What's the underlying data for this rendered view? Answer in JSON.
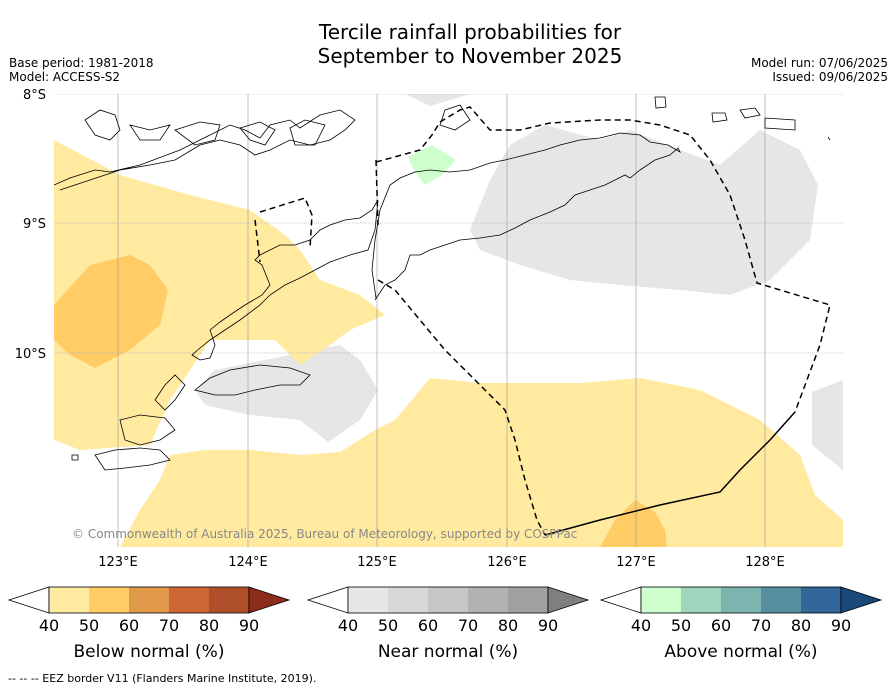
{
  "title_line1": "Tercile rainfall probabilities for",
  "title_line2": "September to November 2025",
  "meta_left": {
    "base_period": "Base period: 1981-2018",
    "model": "Model: ACCESS-S2"
  },
  "meta_right": {
    "model_run": "Model run: 07/06/2025",
    "issued": "Issued: 09/06/2025"
  },
  "map": {
    "lat_labels": [
      "8°S",
      "9°S",
      "10°S"
    ],
    "lon_labels": [
      "123°E",
      "124°E",
      "125°E",
      "126°E",
      "127°E",
      "128°E"
    ],
    "copyright": "© Commonwealth of Australia 2025, Bureau of Meteorology, supported by COSPPac",
    "colors": {
      "below_50": "#ffeaa0",
      "below_60": "#ffcc66",
      "near_50": "#e6e6e6",
      "above_50": "#ccffcc",
      "coast": "#000000",
      "eez": "#000000"
    }
  },
  "colorbars": [
    {
      "label": "Below normal (%)",
      "ticks": [
        "40",
        "50",
        "60",
        "70",
        "80",
        "90"
      ],
      "colors": [
        "#ffffff",
        "#ffeaa0",
        "#ffcc66",
        "#e09a4a",
        "#cc6633",
        "#b0502a",
        "#8c2d1a"
      ]
    },
    {
      "label": "Near normal (%)",
      "ticks": [
        "40",
        "50",
        "60",
        "70",
        "80",
        "90"
      ],
      "colors": [
        "#ffffff",
        "#e6e6e6",
        "#d8d8d8",
        "#c6c6c6",
        "#b2b2b2",
        "#a0a0a0",
        "#7f7f7f"
      ]
    },
    {
      "label": "Above normal (%)",
      "ticks": [
        "40",
        "50",
        "60",
        "70",
        "80",
        "90"
      ],
      "colors": [
        "#ffffff",
        "#ccffcc",
        "#a0d6bd",
        "#7cb4b0",
        "#588f9f",
        "#336699",
        "#1a4a7a"
      ]
    }
  ],
  "footnote": "--  --  -- EEZ border V11 (Flanders Marine Institute, 2019)."
}
